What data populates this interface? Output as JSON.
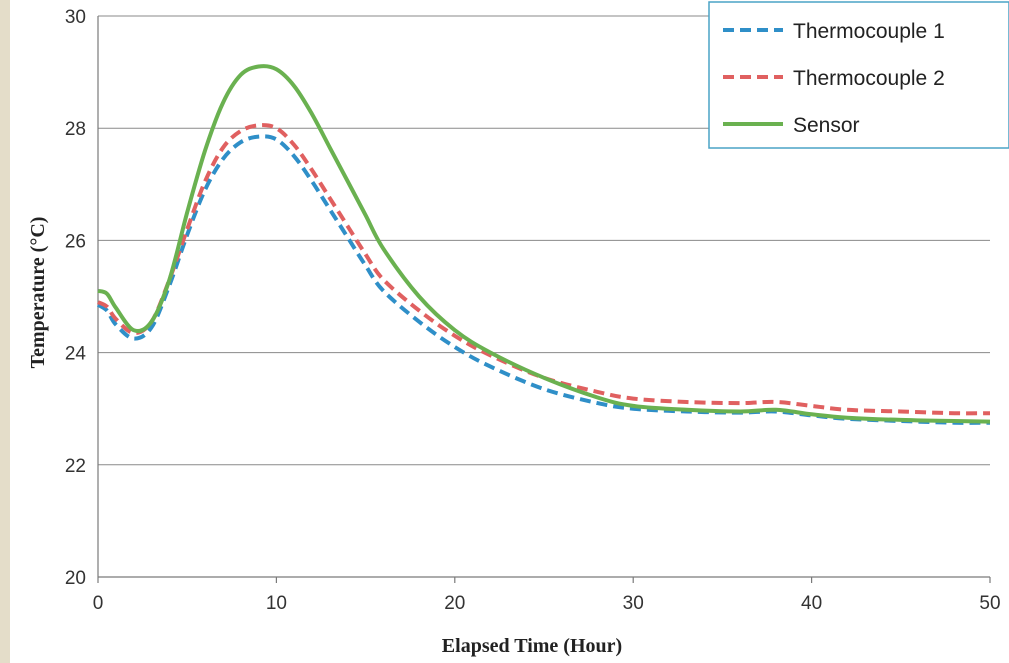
{
  "chart_data": {
    "type": "line",
    "title": "",
    "xlabel": "Elapsed Time (Hour)",
    "ylabel": "Temperature (°C)",
    "xlim": [
      0,
      50
    ],
    "ylim": [
      20,
      30
    ],
    "xticks": [
      0,
      10,
      20,
      30,
      40,
      50
    ],
    "yticks": [
      20,
      22,
      24,
      26,
      28,
      30
    ],
    "grid": "horizontal",
    "legend_position": "top-right",
    "series": [
      {
        "name": "Thermocouple 1",
        "color": "#2f8fc8",
        "style": "dashed",
        "x": [
          0,
          0.5,
          1,
          2,
          3,
          4,
          5,
          6,
          7,
          8,
          9,
          10,
          11,
          12,
          13,
          14,
          15,
          16,
          18,
          20,
          22,
          25,
          28,
          30,
          33,
          36,
          38,
          40,
          42,
          45,
          48,
          50
        ],
        "y": [
          24.85,
          24.75,
          24.5,
          24.25,
          24.45,
          25.2,
          26.1,
          26.9,
          27.45,
          27.75,
          27.85,
          27.8,
          27.5,
          27.05,
          26.55,
          26.05,
          25.55,
          25.1,
          24.55,
          24.1,
          23.75,
          23.35,
          23.1,
          23.0,
          22.95,
          22.93,
          22.95,
          22.88,
          22.82,
          22.78,
          22.75,
          22.75
        ]
      },
      {
        "name": "Thermocouple 2",
        "color": "#e06060",
        "style": "dashed",
        "x": [
          0,
          0.5,
          1,
          2,
          3,
          4,
          5,
          6,
          7,
          8,
          9,
          10,
          11,
          12,
          13,
          14,
          15,
          16,
          18,
          20,
          22,
          25,
          28,
          30,
          33,
          36,
          38,
          40,
          42,
          45,
          48,
          50
        ],
        "y": [
          24.9,
          24.82,
          24.6,
          24.35,
          24.55,
          25.3,
          26.2,
          27.05,
          27.65,
          27.95,
          28.05,
          28.0,
          27.7,
          27.25,
          26.75,
          26.25,
          25.75,
          25.3,
          24.75,
          24.3,
          23.95,
          23.55,
          23.3,
          23.18,
          23.12,
          23.1,
          23.12,
          23.05,
          22.98,
          22.95,
          22.92,
          22.92
        ]
      },
      {
        "name": "Sensor",
        "color": "#6ab150",
        "style": "solid",
        "x": [
          0,
          0.5,
          1,
          2,
          3,
          4,
          5,
          6,
          7,
          8,
          9,
          10,
          11,
          12,
          13,
          14,
          15,
          16,
          18,
          20,
          22,
          25,
          28,
          30,
          33,
          36,
          38,
          40,
          42,
          45,
          48,
          50
        ],
        "y": [
          25.1,
          25.05,
          24.8,
          24.4,
          24.55,
          25.3,
          26.5,
          27.6,
          28.45,
          28.95,
          29.1,
          29.05,
          28.75,
          28.25,
          27.65,
          27.05,
          26.45,
          25.85,
          25.0,
          24.4,
          24.0,
          23.55,
          23.2,
          23.05,
          22.98,
          22.95,
          22.98,
          22.9,
          22.84,
          22.8,
          22.78,
          22.77
        ]
      }
    ]
  }
}
